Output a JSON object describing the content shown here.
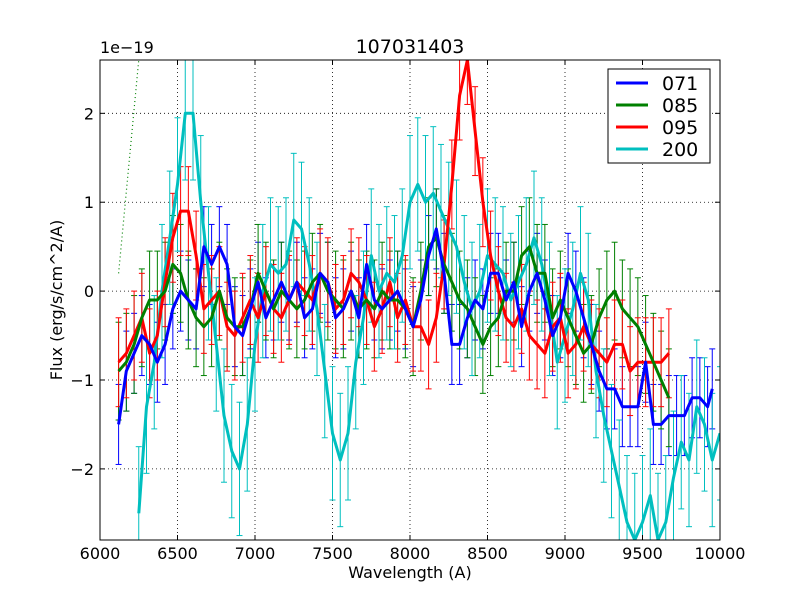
{
  "chart_data": {
    "type": "line",
    "title": "107031403",
    "xlabel": "Wavelength (A)",
    "ylabel": "Flux (erg/s/cm^2/A)",
    "y_scale_label": "1e−19",
    "xlim": [
      6000,
      10000
    ],
    "ylim": [
      -2.8,
      2.6
    ],
    "x_ticks": [
      6000,
      6500,
      7000,
      7500,
      8000,
      8500,
      9000,
      9500,
      10000
    ],
    "x_tick_labels": [
      "6000",
      "6500",
      "7000",
      "7500",
      "8000",
      "8500",
      "9000",
      "9500",
      "10000"
    ],
    "y_ticks": [
      -2,
      -1,
      0,
      1,
      2
    ],
    "y_tick_labels": [
      "−2",
      "−1",
      "0",
      "1",
      "2"
    ],
    "grid": true,
    "legend_position": "top-right",
    "reference_line": {
      "x": [
        6120,
        6250
      ],
      "y": [
        0.2,
        2.6
      ],
      "color": "#008000",
      "style": "dotted"
    },
    "series": [
      {
        "name": "071",
        "color": "#0000ff",
        "x": [
          6120,
          6170,
          6220,
          6270,
          6320,
          6370,
          6420,
          6470,
          6520,
          6570,
          6620,
          6670,
          6720,
          6770,
          6820,
          6870,
          6920,
          6970,
          7020,
          7070,
          7120,
          7170,
          7220,
          7270,
          7320,
          7370,
          7420,
          7470,
          7520,
          7570,
          7620,
          7670,
          7720,
          7770,
          7820,
          7870,
          7920,
          7970,
          8020,
          8070,
          8120,
          8170,
          8220,
          8270,
          8320,
          8370,
          8420,
          8470,
          8520,
          8570,
          8620,
          8670,
          8720,
          8770,
          8820,
          8870,
          8920,
          8970,
          9020,
          9070,
          9120,
          9170,
          9220,
          9270,
          9320,
          9370,
          9420,
          9470,
          9520,
          9570,
          9620,
          9670,
          9720,
          9770,
          9820,
          9870,
          9920,
          9950
        ],
        "y": [
          -1.5,
          -0.9,
          -0.7,
          -0.5,
          -0.6,
          -0.8,
          -0.6,
          -0.2,
          0.0,
          -0.1,
          -0.2,
          0.5,
          0.3,
          0.5,
          0.3,
          -0.4,
          -0.5,
          -0.2,
          0.1,
          -0.3,
          -0.1,
          0.1,
          -0.1,
          0.1,
          -0.3,
          -0.2,
          0.2,
          0.1,
          -0.3,
          -0.2,
          0.0,
          -0.3,
          0.3,
          -0.1,
          -0.2,
          -0.1,
          0.0,
          -0.2,
          -0.4,
          -0.1,
          0.4,
          0.7,
          0.2,
          -0.6,
          -0.6,
          -0.3,
          -0.1,
          -0.2,
          0.2,
          0.2,
          -0.1,
          0.1,
          -0.4,
          0.0,
          0.2,
          -0.1,
          -0.5,
          -0.3,
          0.2,
          0.0,
          -0.3,
          -0.6,
          -0.9,
          -1.1,
          -1.1,
          -1.3,
          -1.3,
          -1.3,
          -0.8,
          -1.5,
          -1.5,
          -1.4,
          -1.4,
          -1.4,
          -1.2,
          -1.2,
          -1.3,
          -1.1
        ],
        "err": 0.45
      },
      {
        "name": "085",
        "color": "#008000",
        "x": [
          6120,
          6170,
          6220,
          6270,
          6320,
          6370,
          6420,
          6470,
          6520,
          6570,
          6620,
          6670,
          6720,
          6770,
          6820,
          6870,
          6920,
          6970,
          7020,
          7070,
          7120,
          7170,
          7220,
          7270,
          7320,
          7370,
          7420,
          7470,
          7520,
          7570,
          7620,
          7670,
          7720,
          7770,
          7820,
          7870,
          7920,
          7970,
          8020,
          8070,
          8120,
          8170,
          8220,
          8270,
          8320,
          8370,
          8420,
          8470,
          8520,
          8570,
          8620,
          8670,
          8720,
          8770,
          8820,
          8870,
          8920,
          8970,
          9020,
          9070,
          9120,
          9170,
          9220,
          9270,
          9320,
          9370,
          9420,
          9470,
          9520,
          9570,
          9620,
          9670
        ],
        "y": [
          -0.9,
          -0.8,
          -0.6,
          -0.3,
          -0.1,
          -0.1,
          0.0,
          0.3,
          0.2,
          -0.1,
          -0.3,
          -0.4,
          -0.3,
          0.0,
          -0.3,
          -0.4,
          -0.4,
          -0.2,
          0.2,
          0.0,
          -0.2,
          0.0,
          -0.1,
          -0.2,
          -0.1,
          0.1,
          0.2,
          0.0,
          -0.1,
          -0.2,
          0.0,
          -0.2,
          -0.1,
          -0.2,
          0.0,
          -0.1,
          -0.1,
          -0.2,
          -0.4,
          0.0,
          0.5,
          0.6,
          0.3,
          0.1,
          -0.1,
          -0.2,
          -0.4,
          -0.6,
          -0.4,
          -0.3,
          0.0,
          0.0,
          0.4,
          0.5,
          0.2,
          0.2,
          -0.3,
          -0.1,
          -0.3,
          -0.5,
          -0.7,
          -0.6,
          -0.3,
          -0.1,
          0.0,
          -0.2,
          -0.3,
          -0.4,
          -0.6,
          -0.8,
          -1.0,
          -1.2
        ],
        "err": 0.55
      },
      {
        "name": "095",
        "color": "#ff0000",
        "x": [
          6120,
          6170,
          6220,
          6270,
          6320,
          6370,
          6420,
          6470,
          6520,
          6570,
          6620,
          6670,
          6720,
          6770,
          6820,
          6870,
          6920,
          6970,
          7020,
          7070,
          7120,
          7170,
          7220,
          7270,
          7320,
          7370,
          7420,
          7470,
          7520,
          7570,
          7620,
          7670,
          7720,
          7770,
          7820,
          7870,
          7920,
          7970,
          8020,
          8070,
          8120,
          8170,
          8220,
          8270,
          8320,
          8370,
          8420,
          8470,
          8520,
          8570,
          8620,
          8670,
          8720,
          8770,
          8820,
          8870,
          8920,
          8970,
          9020,
          9070,
          9120,
          9170,
          9220,
          9270,
          9320,
          9370,
          9420,
          9470,
          9520,
          9570,
          9620,
          9670
        ],
        "y": [
          -0.8,
          -0.7,
          -0.5,
          -0.3,
          -0.7,
          -0.5,
          0.1,
          0.6,
          0.9,
          0.9,
          0.4,
          -0.2,
          -0.1,
          0.0,
          -0.4,
          -0.5,
          -0.3,
          -0.1,
          -0.3,
          0.0,
          -0.2,
          -0.3,
          -0.1,
          0.1,
          0.0,
          -0.1,
          0.2,
          0.1,
          -0.2,
          -0.1,
          0.2,
          0.1,
          -0.1,
          -0.4,
          -0.2,
          0.1,
          -0.3,
          -0.1,
          -0.4,
          -0.4,
          -0.6,
          -0.3,
          0.3,
          1.2,
          2.2,
          2.6,
          1.8,
          1.0,
          0.4,
          0.0,
          -0.3,
          -0.4,
          -0.2,
          -0.5,
          -0.6,
          -0.7,
          -0.4,
          -0.3,
          -0.7,
          -0.6,
          -0.4,
          -0.6,
          -0.7,
          -0.8,
          -0.6,
          -0.6,
          -0.9,
          -0.8,
          -0.8,
          -0.8,
          -0.8,
          -0.7
        ],
        "err": 0.5
      },
      {
        "name": "200",
        "color": "#00bfbf",
        "x": [
          6250,
          6300,
          6350,
          6400,
          6450,
          6500,
          6550,
          6600,
          6650,
          6700,
          6750,
          6800,
          6850,
          6900,
          6950,
          7000,
          7050,
          7100,
          7150,
          7200,
          7250,
          7300,
          7350,
          7400,
          7450,
          7500,
          7550,
          7600,
          7650,
          7700,
          7750,
          7800,
          7850,
          7900,
          7950,
          8000,
          8050,
          8100,
          8150,
          8200,
          8250,
          8300,
          8350,
          8400,
          8450,
          8500,
          8550,
          8600,
          8650,
          8700,
          8750,
          8800,
          8850,
          8900,
          8950,
          9000,
          9050,
          9100,
          9150,
          9200,
          9250,
          9300,
          9350,
          9400,
          9450,
          9500,
          9550,
          9600,
          9650,
          9700,
          9750,
          9800,
          9850,
          9900,
          9950,
          10000
        ],
        "y": [
          -2.5,
          -1.3,
          -0.8,
          0.0,
          0.6,
          1.2,
          2.0,
          2.0,
          1.0,
          0.2,
          -0.6,
          -1.4,
          -1.8,
          -2.0,
          -1.5,
          -0.6,
          0.0,
          0.3,
          0.2,
          0.3,
          0.8,
          0.7,
          0.3,
          -0.2,
          -0.9,
          -1.6,
          -1.9,
          -1.6,
          -0.8,
          -0.3,
          0.4,
          0.0,
          0.2,
          0.1,
          0.4,
          1.0,
          1.2,
          1.0,
          1.1,
          0.9,
          0.7,
          0.5,
          0.1,
          -0.2,
          0.0,
          0.4,
          0.3,
          0.2,
          -0.1,
          0.1,
          0.3,
          0.6,
          0.3,
          -0.2,
          -0.8,
          -0.5,
          -0.2,
          0.2,
          -0.1,
          -0.9,
          -1.4,
          -1.8,
          -2.2,
          -2.6,
          -2.8,
          -2.6,
          -2.3,
          -2.8,
          -2.6,
          -2.1,
          -1.7,
          -1.9,
          -1.3,
          -1.5,
          -1.9,
          -1.6
        ],
        "err": 0.75
      }
    ]
  }
}
